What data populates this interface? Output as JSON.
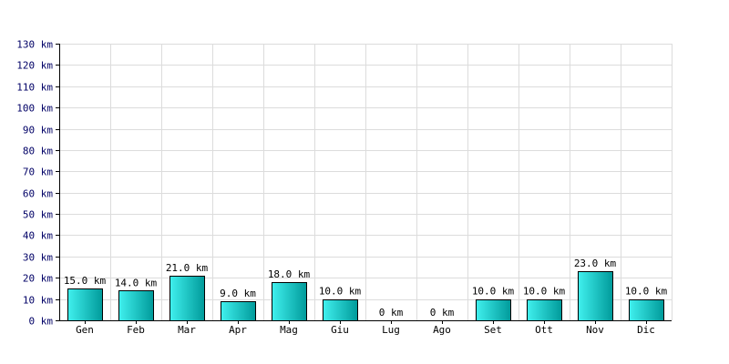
{
  "chart_data": {
    "type": "bar",
    "categories": [
      "Gen",
      "Feb",
      "Mar",
      "Apr",
      "Mag",
      "Giu",
      "Lug",
      "Ago",
      "Set",
      "Ott",
      "Nov",
      "Dic"
    ],
    "values": [
      15.0,
      14.0,
      21.0,
      9.0,
      18.0,
      10.0,
      0,
      0,
      10.0,
      10.0,
      23.0,
      10.0
    ],
    "value_labels": [
      "15.0 km",
      "14.0 km",
      "21.0 km",
      "9.0 km",
      "18.0 km",
      "10.0 km",
      "0 km",
      "0 km",
      "10.0 km",
      "10.0 km",
      "23.0 km",
      "10.0 km"
    ],
    "y_ticks": [
      "0 km",
      "10 km",
      "20 km",
      "30 km",
      "40 km",
      "50 km",
      "60 km",
      "70 km",
      "80 km",
      "90 km",
      "100 km",
      "110 km",
      "120 km",
      "130 km"
    ],
    "ylim": [
      0,
      130
    ],
    "y_step": 10,
    "unit": "km",
    "grid": true,
    "colors": {
      "bar_light": "#40f0ee",
      "bar_dark": "#009a9a",
      "tick_text": "#000066",
      "grid": "#dcdcdc"
    }
  }
}
